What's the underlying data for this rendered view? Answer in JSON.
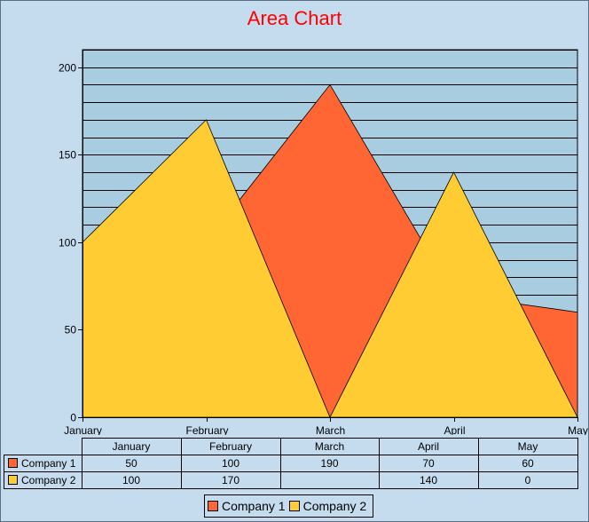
{
  "chart_data": {
    "type": "area",
    "title": "Area Chart",
    "categories": [
      "January",
      "February",
      "March",
      "April",
      "May"
    ],
    "series": [
      {
        "name": "Company 1",
        "values": [
          50,
          100,
          190,
          70,
          60
        ],
        "color": "#ff6633"
      },
      {
        "name": "Company 2",
        "values": [
          100,
          170,
          0,
          140,
          0
        ],
        "color": "#ffcc33"
      }
    ],
    "table_values": [
      [
        "50",
        "100",
        "190",
        "70",
        "60"
      ],
      [
        "100",
        "170",
        "",
        "140",
        "0"
      ]
    ],
    "ylim": [
      0,
      210
    ],
    "yticks": [
      0,
      50,
      100,
      150,
      200
    ],
    "grid": true,
    "plot_background": "#a9cde0",
    "legend_position": "bottom"
  }
}
